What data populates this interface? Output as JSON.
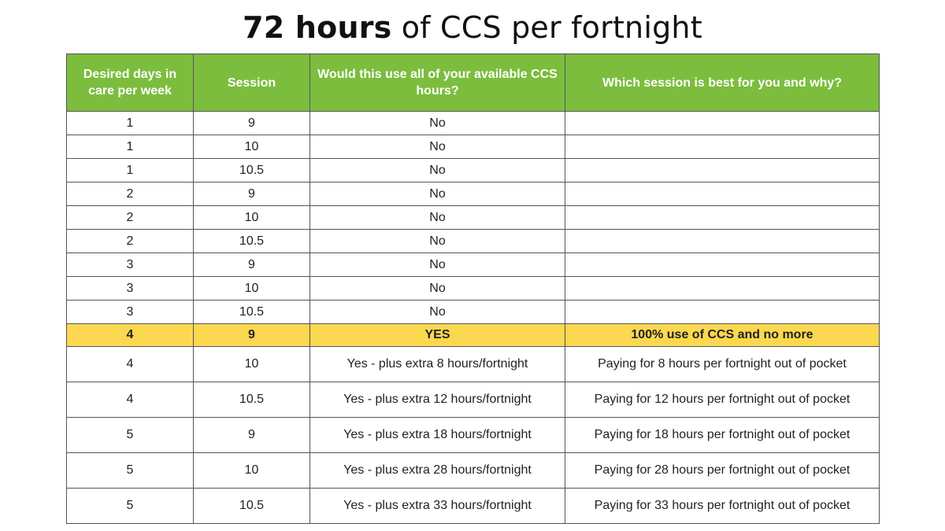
{
  "title": {
    "bold": "72 hours",
    "rest": "of CCS per fortnight"
  },
  "colors": {
    "header_bg": "#7cbd3e",
    "header_text": "#ffffff",
    "highlight_bg": "#fbd850",
    "border": "#555555"
  },
  "table": {
    "headers": [
      "Desired days in care per week",
      "Session",
      "Would this use all of your available CCS hours?",
      "Which session is best for you and why?"
    ],
    "rows": [
      {
        "days": "1",
        "session": "9",
        "use_all": "No",
        "best": ""
      },
      {
        "days": "1",
        "session": "10",
        "use_all": "No",
        "best": ""
      },
      {
        "days": "1",
        "session": "10.5",
        "use_all": "No",
        "best": ""
      },
      {
        "days": "2",
        "session": "9",
        "use_all": "No",
        "best": ""
      },
      {
        "days": "2",
        "session": "10",
        "use_all": "No",
        "best": ""
      },
      {
        "days": "2",
        "session": "10.5",
        "use_all": "No",
        "best": ""
      },
      {
        "days": "3",
        "session": "9",
        "use_all": "No",
        "best": ""
      },
      {
        "days": "3",
        "session": "10",
        "use_all": "No",
        "best": ""
      },
      {
        "days": "3",
        "session": "10.5",
        "use_all": "No",
        "best": ""
      },
      {
        "days": "4",
        "session": "9",
        "use_all": "YES",
        "best": "100% use of CCS and no more",
        "highlight": true
      },
      {
        "days": "4",
        "session": "10",
        "use_all": "Yes - plus extra 8 hours/fortnight",
        "best": "Paying for 8 hours per fortnight out of pocket"
      },
      {
        "days": "4",
        "session": "10.5",
        "use_all": "Yes - plus extra 12 hours/fortnight",
        "best": "Paying for 12 hours per fortnight out of pocket"
      },
      {
        "days": "5",
        "session": "9",
        "use_all": "Yes - plus extra 18 hours/fortnight",
        "best": "Paying for 18 hours per fortnight out of pocket"
      },
      {
        "days": "5",
        "session": "10",
        "use_all": "Yes - plus extra 28 hours/fortnight",
        "best": "Paying for 28 hours per fortnight out of pocket"
      },
      {
        "days": "5",
        "session": "10.5",
        "use_all": "Yes - plus extra 33 hours/fortnight",
        "best": "Paying for 33 hours per fortnight out of pocket"
      }
    ]
  }
}
